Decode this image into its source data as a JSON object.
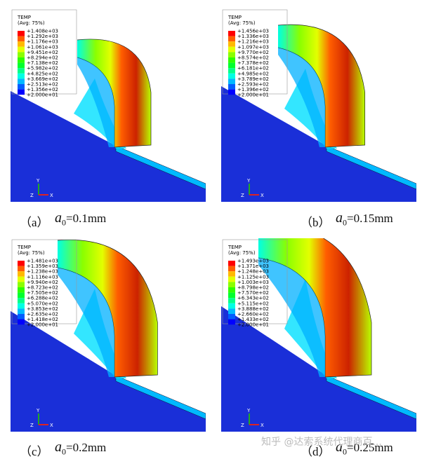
{
  "panels": [
    {
      "legend_title": "TEMP",
      "legend_subtitle": "(Avg: 75%)",
      "legend_values": [
        "+1.408e+03",
        "+1.292e+03",
        "+1.176e+03",
        "+1.061e+03",
        "+9.451e+02",
        "+8.294e+02",
        "+7.138e+02",
        "+5.982e+02",
        "+4.825e+02",
        "+3.669e+02",
        "+2.513e+02",
        "+1.356e+02",
        "+2.000e+01"
      ],
      "label": "（a）",
      "variable": "a",
      "subscript": "0",
      "value": "=0.1mm"
    },
    {
      "legend_title": "TEMP",
      "legend_subtitle": "(Avg: 75%)",
      "legend_values": [
        "+1.456e+03",
        "+1.336e+03",
        "+1.216e+03",
        "+1.097e+03",
        "+9.770e+02",
        "+8.574e+02",
        "+7.378e+02",
        "+6.181e+02",
        "+4.985e+02",
        "+3.789e+02",
        "+2.593e+02",
        "+1.396e+02",
        "+2.000e+01"
      ],
      "label": "（b）",
      "variable": "a",
      "subscript": "0",
      "value": "=0.15mm"
    },
    {
      "legend_title": "TEMP",
      "legend_subtitle": "(Avg: 75%)",
      "legend_values": [
        "+1.481e+03",
        "+1.359e+03",
        "+1.238e+03",
        "+1.116e+03",
        "+9.940e+02",
        "+8.723e+02",
        "+7.505e+02",
        "+6.288e+02",
        "+5.070e+02",
        "+3.853e+02",
        "+2.635e+02",
        "+1.418e+02",
        "+2.000e+01"
      ],
      "label": "（c）",
      "variable": "a",
      "subscript": "0",
      "value": "=0.2mm"
    },
    {
      "legend_title": "TEMP",
      "legend_subtitle": "(Avg: 75%)",
      "legend_values": [
        "+1.493e+03",
        "+1.371e+03",
        "+1.248e+03",
        "+1.125e+03",
        "+1.003e+03",
        "+8.798e+02",
        "+7.570e+02",
        "+6.343e+02",
        "+5.115e+02",
        "+3.888e+02",
        "+2.660e+02",
        "+1.433e+02",
        "+2.000e+01"
      ],
      "label": "（d）",
      "variable": "a",
      "subscript": "0",
      "value": "=0.25mm"
    }
  ],
  "triad": {
    "y": "Y",
    "z": "Z",
    "x": "X"
  },
  "watermark": "知乎 @达索系统代理商百..."
}
